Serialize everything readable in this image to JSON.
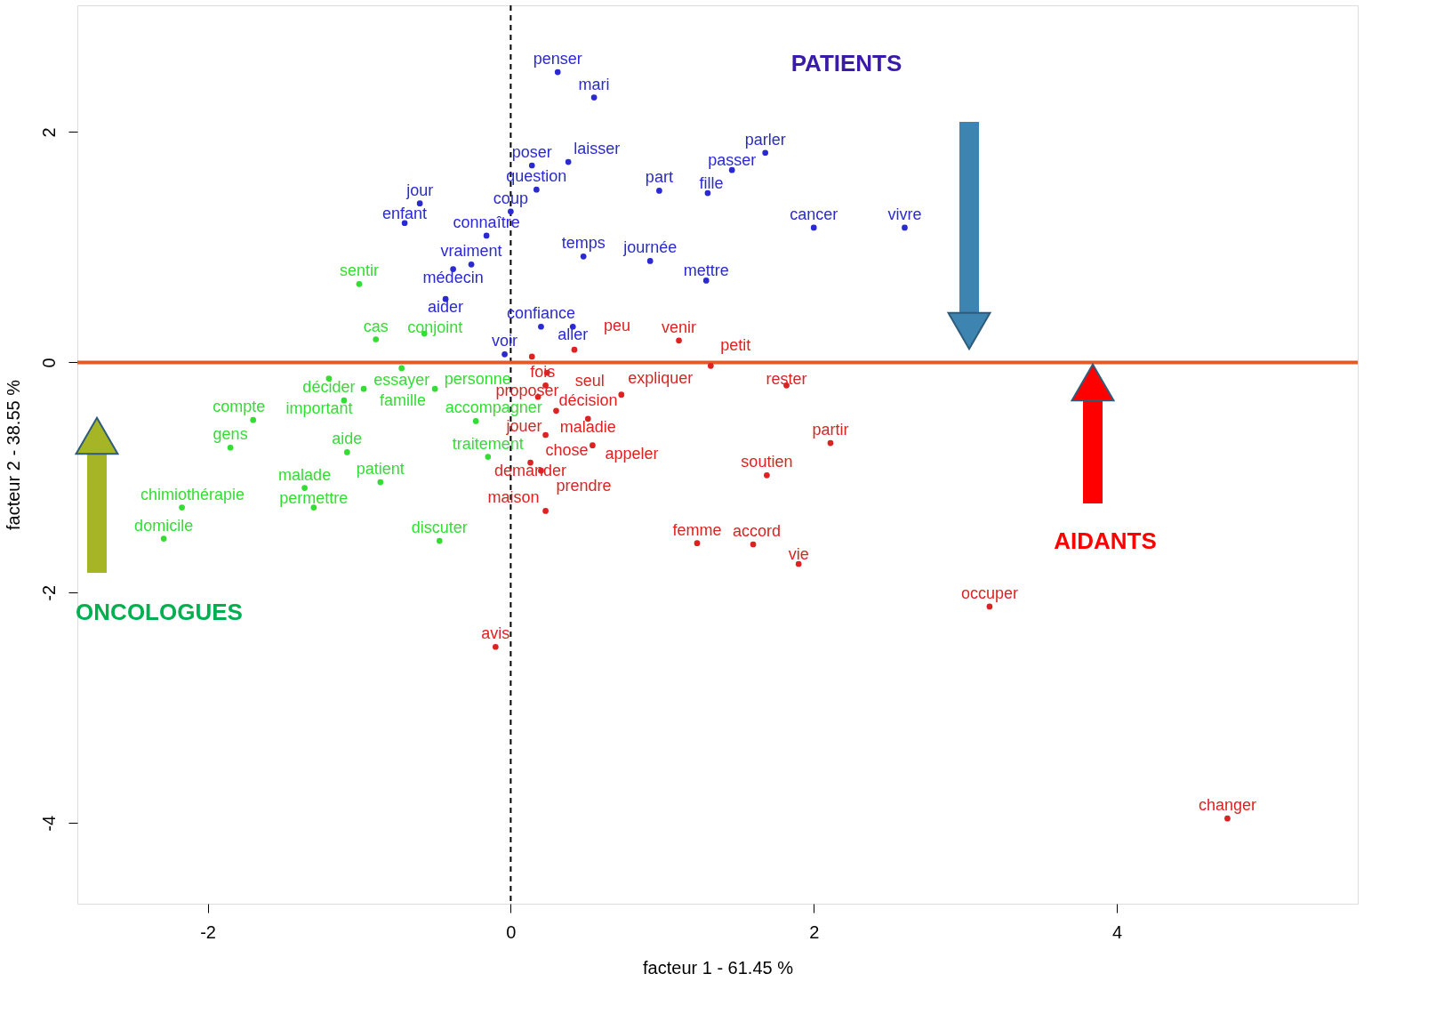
{
  "chart_data": {
    "type": "scatter",
    "marker": "circle",
    "xlabel": "facteur  1  - 61.45 %",
    "ylabel": "facteur  2  - 38.55 %",
    "xlim": [
      -2.86,
      5.59
    ],
    "ylim": [
      -4.7,
      3.1
    ],
    "xticks": [
      -2,
      0,
      2,
      4
    ],
    "yticks": [
      -4,
      -2,
      0,
      2
    ],
    "annotations": [
      "PATIENTS",
      "ONCOLOGUES",
      "AIDANTS"
    ],
    "ref_lines": [
      {
        "axis": "x",
        "value": 0,
        "color": "#000000",
        "line_style": "dashed"
      },
      {
        "axis": "y",
        "value": 0,
        "color": "#e05a2b",
        "line_style": "solid"
      }
    ],
    "series": [
      {
        "color": "#2a2ad0",
        "x": [
          0.31,
          0.55,
          0.14,
          0.38,
          1.68,
          1.46,
          0.17,
          0.98,
          1.3,
          -0.6,
          0.0,
          -0.7,
          2.0,
          2.6,
          -0.16,
          0.48,
          0.92,
          -0.26,
          -0.38,
          1.29,
          -0.43,
          0.2,
          0.41,
          -0.04
        ],
        "values": [
          2.52,
          2.3,
          1.71,
          1.74,
          1.82,
          1.67,
          1.5,
          1.49,
          1.47,
          1.38,
          1.31,
          1.21,
          1.17,
          1.17,
          1.1,
          0.92,
          0.88,
          0.85,
          0.81,
          0.71,
          0.55,
          0.31,
          0.31,
          0.07
        ],
        "value_labels": [
          "penser",
          "mari",
          "poser",
          "laisser",
          "parler",
          "passer",
          "question",
          "part",
          "fille",
          "jour",
          "coup",
          "enfant",
          "cancer",
          "vivre",
          "connaître",
          "temps",
          "journée",
          "vraiment",
          "médecin",
          "mettre",
          "aider",
          "confiance",
          "aller",
          "voir"
        ]
      },
      {
        "color": "#33dd33",
        "x": [
          -1.0,
          -0.89,
          -0.57,
          -0.72,
          -1.2,
          -0.97,
          -0.5,
          -1.1,
          -1.7,
          -0.23,
          -1.85,
          -1.08,
          -0.15,
          -0.86,
          -1.36,
          -2.17,
          -1.3,
          -2.29,
          -0.47
        ],
        "values": [
          0.68,
          0.2,
          0.25,
          -0.05,
          -0.14,
          -0.23,
          -0.23,
          -0.33,
          -0.5,
          -0.51,
          -0.74,
          -0.78,
          -0.82,
          -1.04,
          -1.09,
          -1.26,
          -1.26,
          -1.53,
          -1.55
        ],
        "value_labels": [
          "sentir",
          "cas",
          "conjoint",
          "essayer",
          "décider",
          "famille",
          "personne",
          "important",
          "compte",
          "accompagner",
          "gens",
          "aide",
          "traitement",
          "patient",
          "malade",
          "chimiothérapie",
          "permettre",
          "domicile",
          "discuter"
        ]
      },
      {
        "color": "#dd2222",
        "x": [
          1.11,
          0.42,
          0.14,
          1.32,
          0.24,
          0.23,
          1.82,
          0.18,
          0.73,
          0.51,
          0.3,
          0.23,
          0.54,
          2.11,
          0.13,
          0.2,
          1.69,
          0.23,
          1.23,
          1.6,
          1.9,
          3.16,
          -0.1,
          4.73
        ],
        "values": [
          0.19,
          0.11,
          0.05,
          -0.03,
          -0.09,
          -0.2,
          -0.2,
          -0.3,
          -0.28,
          -0.49,
          -0.42,
          -0.63,
          -0.72,
          -0.7,
          -0.87,
          -0.94,
          -0.98,
          -1.29,
          -1.57,
          -1.58,
          -1.75,
          -2.12,
          -2.47,
          -3.96
        ],
        "value_labels": [
          "venir",
          "peu",
          "fois",
          "petit",
          "seul",
          "décision",
          "rester",
          "proposer",
          "expliquer",
          "maladie",
          "jouer",
          "chose",
          "appeler",
          "partir",
          "demander",
          "prendre",
          "soutien",
          "maison",
          "femme",
          "accord",
          "vie",
          "occuper",
          "avis",
          "changer"
        ]
      }
    ]
  }
}
